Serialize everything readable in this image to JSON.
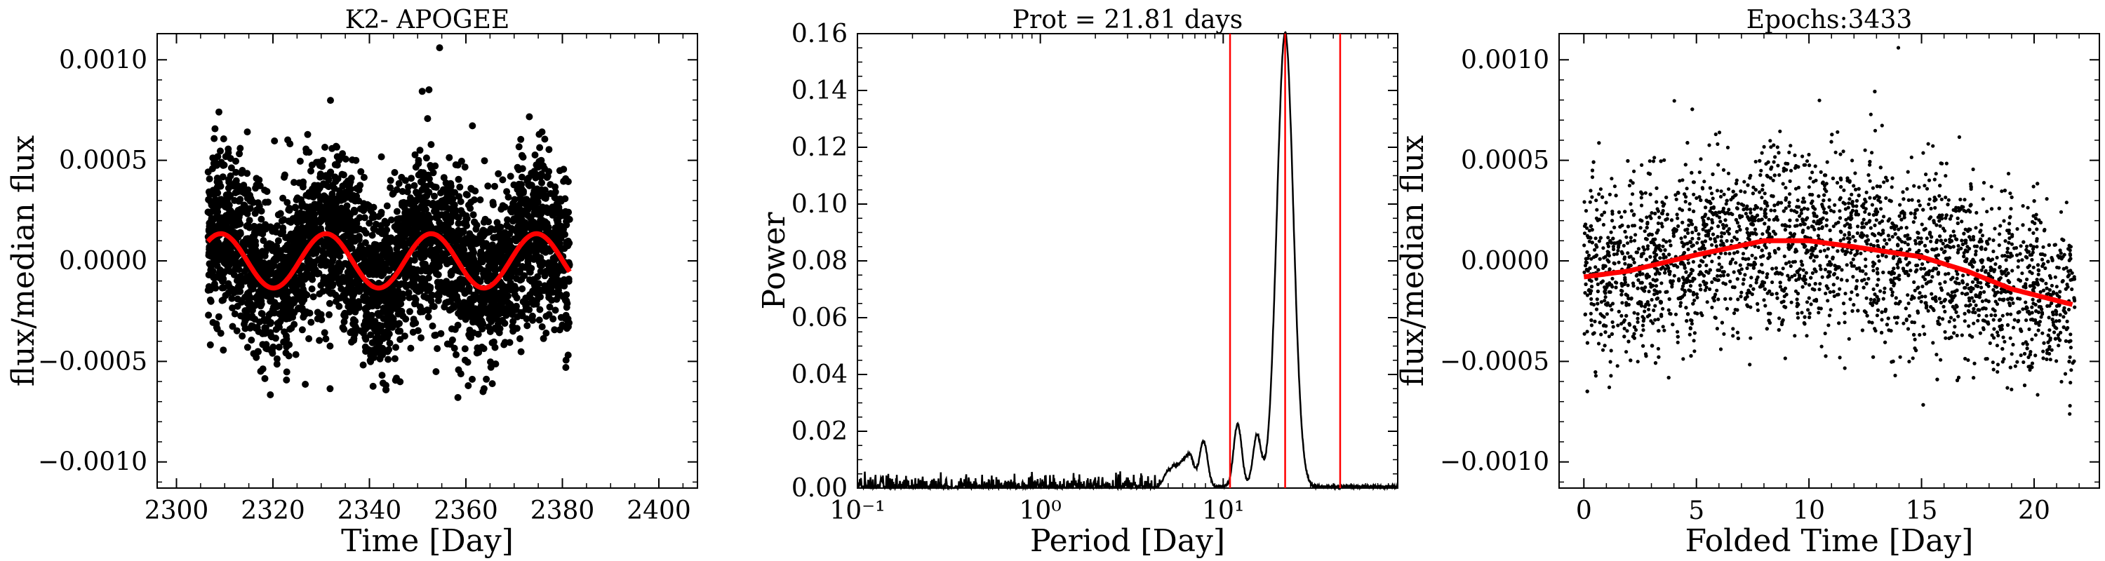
{
  "chart_data": [
    {
      "type": "scatter",
      "title": "K2- APOGEE",
      "xlabel": "Time [Day]",
      "ylabel": "flux/median flux",
      "xlim": [
        2296,
        2408
      ],
      "ylim": [
        -0.00113,
        0.00113
      ],
      "xticks": [
        2300,
        2320,
        2340,
        2360,
        2380,
        2400
      ],
      "xtick_labels": [
        "2300",
        "2320",
        "2340",
        "2360",
        "2380",
        "2400"
      ],
      "yticks": [
        -0.001,
        -0.0005,
        0.0,
        0.0005,
        0.001
      ],
      "ytick_labels": [
        "−0.0010",
        "−0.0005",
        "0.0000",
        "0.0005",
        "0.0010"
      ],
      "series": [
        {
          "marker": "point",
          "color": "#000000",
          "x_range": [
            2306.5,
            2381.5
          ],
          "y_center": 0.0,
          "y_scatter_sigma": 0.00024,
          "approx_points": 3433
        },
        {
          "kind": "sine-fit",
          "color": "#ff0000",
          "x_range": [
            2306.5,
            2381.5
          ],
          "amplitude": 0.000135,
          "period": 21.81,
          "phase_peak_x": 2331.0
        }
      ]
    },
    {
      "type": "line",
      "title": "Prot = 21.81 days",
      "xlabel": "Period [Day]",
      "ylabel": "Power",
      "xscale": "log",
      "xlim": [
        0.1,
        90
      ],
      "ylim": [
        0.0,
        0.16
      ],
      "xticks": [
        0.1,
        1,
        10
      ],
      "xtick_labels": [
        "10⁻¹",
        "10⁰",
        "10¹"
      ],
      "yticks": [
        0.0,
        0.02,
        0.04,
        0.06,
        0.08,
        0.1,
        0.12,
        0.14,
        0.16
      ],
      "ytick_labels": [
        "0.00",
        "0.02",
        "0.04",
        "0.06",
        "0.08",
        "0.10",
        "0.12",
        "0.14",
        "0.16"
      ],
      "series": [
        {
          "color": "#000000",
          "peaks": [
            {
              "period": 21.81,
              "power": 0.16
            },
            {
              "period": 12.0,
              "power": 0.022
            },
            {
              "period": 15.3,
              "power": 0.018
            },
            {
              "period": 7.8,
              "power": 0.016
            },
            {
              "period": 6.6,
              "power": 0.01
            },
            {
              "period": 6.0,
              "power": 0.007
            },
            {
              "period": 5.4,
              "power": 0.006
            },
            {
              "period": 4.9,
              "power": 0.004
            }
          ],
          "noise_floor_max": 0.006
        }
      ],
      "vlines": [
        {
          "x": 10.9,
          "color": "#ff0000"
        },
        {
          "x": 21.81,
          "color": "#ff0000"
        },
        {
          "x": 43.6,
          "color": "#ff0000"
        }
      ]
    },
    {
      "type": "scatter",
      "title": "Epochs:3433",
      "xlabel": "Folded Time [Day]",
      "ylabel": "flux/median flux",
      "xlim": [
        -1.1,
        22.9
      ],
      "ylim": [
        -0.00113,
        0.00113
      ],
      "xticks": [
        0,
        5,
        10,
        15,
        20
      ],
      "xtick_labels": [
        "0",
        "5",
        "10",
        "15",
        "20"
      ],
      "yticks": [
        -0.001,
        -0.0005,
        0.0,
        0.0005,
        0.001
      ],
      "ytick_labels": [
        "−0.0010",
        "−0.0005",
        "0.0000",
        "0.0005",
        "0.0010"
      ],
      "series": [
        {
          "marker": "point",
          "color": "#000000",
          "x_range": [
            0.0,
            21.81
          ],
          "y_scatter_sigma": 0.00026,
          "approx_points": 3433
        },
        {
          "kind": "fold-fit",
          "color": "#ff0000",
          "points": [
            [
              0,
              -8e-05
            ],
            [
              2,
              -5e-05
            ],
            [
              5,
              3e-05
            ],
            [
              8,
              0.0001
            ],
            [
              10,
              0.0001
            ],
            [
              12,
              7e-05
            ],
            [
              15,
              2e-05
            ],
            [
              17,
              -5e-05
            ],
            [
              19,
              -0.00014
            ],
            [
              21.8,
              -0.00022
            ]
          ]
        }
      ]
    }
  ]
}
